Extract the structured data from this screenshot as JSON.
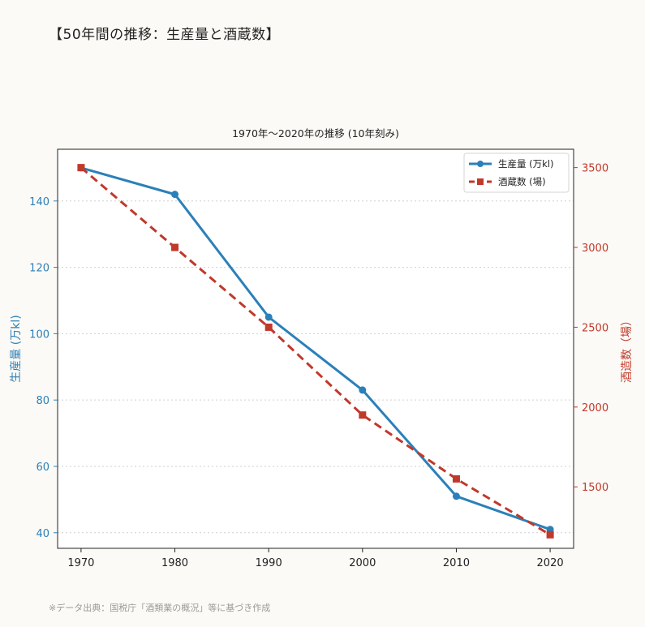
{
  "page": {
    "heading": "【50年間の推移：生産量と酒蔵数】",
    "footnote": "※データ出典：国税庁「酒類業の概況」等に基づき作成"
  },
  "colors": {
    "production": "#2b80b9",
    "breweries": "#c0392b",
    "axis": "#222222",
    "grid": "#cfcfcf",
    "plot_bg": "#ffffff"
  },
  "chart_data": {
    "type": "line",
    "title": "1970年〜2020年の推移 (10年刻み)",
    "x": [
      1970,
      1980,
      1990,
      2000,
      2010,
      2020
    ],
    "xlim": [
      1967.5,
      2022.5
    ],
    "xticks": [
      "1970",
      "1980",
      "1990",
      "2000",
      "2010",
      "2020"
    ],
    "grid": "horizontal-dotted",
    "legend_position": "top-right",
    "series": [
      {
        "name": "生産量 (万kl)",
        "axis": "left",
        "marker": "circle",
        "style": "solid",
        "values": [
          150,
          142,
          105,
          83,
          51,
          41
        ]
      },
      {
        "name": "酒蔵数 (場)",
        "axis": "right",
        "marker": "square",
        "style": "dashed",
        "values": [
          3500,
          3000,
          2500,
          1950,
          1550,
          1200
        ]
      }
    ],
    "y_left": {
      "label": "生産量 (万kl)",
      "ylim": [
        35.3,
        155.6
      ],
      "ticks": [
        "40",
        "60",
        "80",
        "100",
        "120",
        "140"
      ]
    },
    "y_right": {
      "label": "酒造数（場）",
      "ylim": [
        1115,
        3615
      ],
      "ticks": [
        "1500",
        "2000",
        "2500",
        "3000",
        "3500"
      ]
    }
  }
}
